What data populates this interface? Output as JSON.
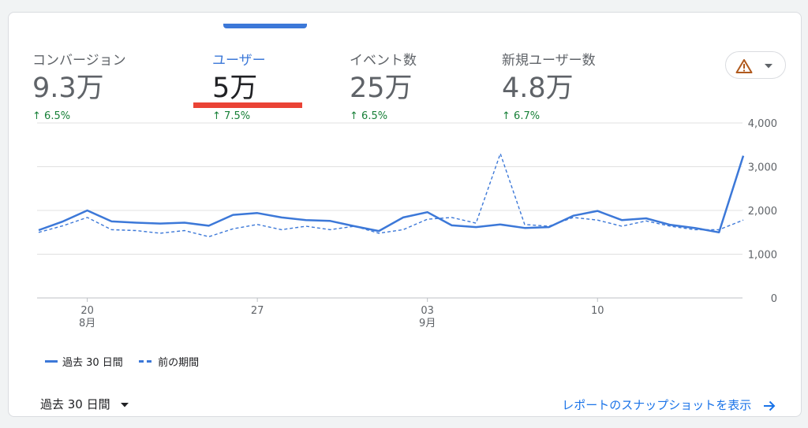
{
  "metrics": [
    {
      "label": "コンバージョン",
      "value": "9.3万",
      "delta": "6.5%"
    },
    {
      "label": "ユーザー",
      "value": "5万",
      "delta": "7.5%",
      "active": true
    },
    {
      "label": "イベント数",
      "value": "25万",
      "delta": "6.5%"
    },
    {
      "label": "新規ユーザー数",
      "value": "4.8万",
      "delta": "6.7%"
    }
  ],
  "warning_button": {
    "icon": "warning-triangle-icon",
    "dropdown_icon": "caret-down-icon"
  },
  "legend": {
    "current": "過去 30 日間",
    "previous": "前の期間"
  },
  "range_selector": {
    "label": "過去 30 日間"
  },
  "report_link": {
    "label": "レポートのスナップショットを表示"
  },
  "colors": {
    "accent": "#3c78d8",
    "positive": "#188038",
    "highlight": "#ea4335",
    "link": "#1a73e8"
  },
  "chart_data": {
    "type": "line",
    "y_ticks": [
      "4,000",
      "3,000",
      "2,000",
      "1,000",
      "0"
    ],
    "ylim": [
      0,
      4000
    ],
    "x_tick_labels": [
      {
        "day": "20",
        "month": "8月",
        "index": 2
      },
      {
        "day": "27",
        "month": "",
        "index": 9
      },
      {
        "day": "03",
        "month": "9月",
        "index": 16
      },
      {
        "day": "10",
        "month": "",
        "index": 23
      }
    ],
    "series": [
      {
        "name": "過去 30 日間",
        "style": "solid",
        "values": [
          1550,
          1750,
          2000,
          1750,
          1720,
          1700,
          1720,
          1650,
          1900,
          1940,
          1840,
          1780,
          1760,
          1640,
          1530,
          1840,
          1960,
          1660,
          1620,
          1680,
          1600,
          1620,
          1880,
          1990,
          1780,
          1820,
          1670,
          1600,
          1500,
          3250
        ]
      },
      {
        "name": "前の期間",
        "style": "dashed",
        "values": [
          1500,
          1650,
          1840,
          1560,
          1540,
          1480,
          1540,
          1400,
          1580,
          1680,
          1560,
          1640,
          1560,
          1640,
          1480,
          1560,
          1800,
          1840,
          1710,
          3300,
          1680,
          1640,
          1840,
          1780,
          1640,
          1760,
          1640,
          1560,
          1560,
          1780
        ]
      }
    ]
  }
}
